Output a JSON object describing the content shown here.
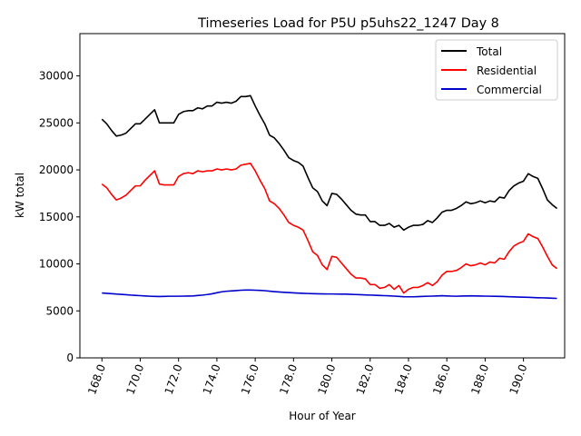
{
  "chart_data": {
    "type": "line",
    "title": "Timeseries Load for P5U p5uhs22_1247  Day 8",
    "xlabel": "Hour of Year",
    "ylabel": "kW total",
    "xlim": [
      166.85,
      192.15
    ],
    "ylim": [
      0,
      34500
    ],
    "xticks": [
      168,
      170,
      172,
      174,
      176,
      178,
      180,
      182,
      184,
      186,
      188,
      190
    ],
    "xtick_labels": [
      "168.0",
      "170.0",
      "172.0",
      "174.0",
      "176.0",
      "178.0",
      "180.0",
      "182.0",
      "184.0",
      "186.0",
      "188.0",
      "190.0"
    ],
    "yticks": [
      0,
      5000,
      10000,
      15000,
      20000,
      25000,
      30000
    ],
    "ytick_labels": [
      "0",
      "5000",
      "10000",
      "15000",
      "20000",
      "25000",
      "30000"
    ],
    "legend": {
      "position": "top-right",
      "entries": [
        "Total",
        "Residential",
        "Commercial"
      ]
    },
    "x": [
      168.0,
      168.25,
      168.5,
      168.75,
      169.0,
      169.25,
      169.5,
      169.75,
      170.0,
      170.25,
      170.5,
      170.75,
      171.0,
      171.25,
      171.5,
      171.75,
      172.0,
      172.25,
      172.5,
      172.75,
      173.0,
      173.25,
      173.5,
      173.75,
      174.0,
      174.25,
      174.5,
      174.75,
      175.0,
      175.25,
      175.5,
      175.75,
      176.0,
      176.25,
      176.5,
      176.75,
      177.0,
      177.25,
      177.5,
      177.75,
      178.0,
      178.25,
      178.5,
      178.75,
      179.0,
      179.25,
      179.5,
      179.75,
      180.0,
      180.25,
      180.5,
      180.75,
      181.0,
      181.25,
      181.5,
      181.75,
      182.0,
      182.25,
      182.5,
      182.75,
      183.0,
      183.25,
      183.5,
      183.75,
      184.0,
      184.25,
      184.5,
      184.75,
      185.0,
      185.25,
      185.5,
      185.75,
      186.0,
      186.25,
      186.5,
      186.75,
      187.0,
      187.25,
      187.5,
      187.75,
      188.0,
      188.25,
      188.5,
      188.75,
      189.0,
      189.25,
      189.5,
      189.75,
      190.0,
      190.25,
      190.5,
      190.75,
      191.0,
      191.25,
      191.5,
      191.75
    ],
    "series": [
      {
        "name": "Total",
        "color": "#000000",
        "values": [
          25400,
          24900,
          24200,
          23600,
          23700,
          23900,
          24400,
          24900,
          24900,
          25400,
          25900,
          26400,
          25000,
          25000,
          25000,
          25000,
          25900,
          26200,
          26300,
          26300,
          26600,
          26500,
          26800,
          26800,
          27200,
          27100,
          27200,
          27100,
          27300,
          27800,
          27800,
          27900,
          26800,
          25800,
          24900,
          23700,
          23400,
          22800,
          22100,
          21300,
          21000,
          20800,
          20400,
          19200,
          18100,
          17700,
          16700,
          16200,
          17500,
          17400,
          16900,
          16300,
          15700,
          15300,
          15200,
          15200,
          14500,
          14500,
          14100,
          14100,
          14300,
          13900,
          14100,
          13600,
          13900,
          14100,
          14100,
          14200,
          14600,
          14400,
          14900,
          15500,
          15700,
          15700,
          15900,
          16200,
          16600,
          16400,
          16500,
          16700,
          16500,
          16700,
          16600,
          17100,
          17000,
          17800,
          18300,
          18600,
          18800,
          19600,
          19300,
          19100,
          18000,
          16800,
          16300,
          15900
        ]
      },
      {
        "name": "Residential",
        "color": "#ff0000",
        "values": [
          18500,
          18100,
          17400,
          16800,
          17000,
          17300,
          17800,
          18300,
          18300,
          18900,
          19400,
          19900,
          18500,
          18400,
          18400,
          18400,
          19300,
          19600,
          19700,
          19600,
          19900,
          19800,
          19900,
          19900,
          20100,
          20000,
          20100,
          20000,
          20100,
          20500,
          20600,
          20700,
          19900,
          18900,
          18000,
          16700,
          16400,
          15900,
          15200,
          14400,
          14100,
          13900,
          13600,
          12500,
          11300,
          10900,
          9900,
          9400,
          10800,
          10700,
          10100,
          9500,
          8900,
          8500,
          8500,
          8400,
          7800,
          7800,
          7400,
          7500,
          7800,
          7300,
          7700,
          6900,
          7300,
          7500,
          7500,
          7700,
          8000,
          7700,
          8100,
          8800,
          9200,
          9200,
          9300,
          9600,
          10000,
          9800,
          9900,
          10100,
          9900,
          10200,
          10100,
          10600,
          10500,
          11300,
          11900,
          12200,
          12400,
          13200,
          12900,
          12700,
          11800,
          10800,
          9900,
          9500
        ]
      },
      {
        "name": "Commercial",
        "color": "#0000cc",
        "values": [
          6900,
          6870,
          6830,
          6790,
          6760,
          6720,
          6680,
          6650,
          6620,
          6590,
          6560,
          6540,
          6530,
          6540,
          6560,
          6560,
          6560,
          6570,
          6580,
          6590,
          6640,
          6680,
          6740,
          6820,
          6930,
          7030,
          7090,
          7120,
          7160,
          7200,
          7220,
          7220,
          7200,
          7180,
          7150,
          7100,
          7050,
          7010,
          6980,
          6950,
          6920,
          6890,
          6870,
          6850,
          6830,
          6820,
          6810,
          6800,
          6800,
          6790,
          6780,
          6780,
          6760,
          6740,
          6720,
          6700,
          6680,
          6660,
          6640,
          6620,
          6600,
          6570,
          6540,
          6510,
          6500,
          6500,
          6520,
          6540,
          6560,
          6570,
          6590,
          6610,
          6590,
          6570,
          6560,
          6580,
          6590,
          6600,
          6590,
          6580,
          6570,
          6560,
          6550,
          6540,
          6530,
          6510,
          6490,
          6470,
          6460,
          6440,
          6420,
          6400,
          6390,
          6370,
          6350,
          6330
        ]
      }
    ]
  }
}
